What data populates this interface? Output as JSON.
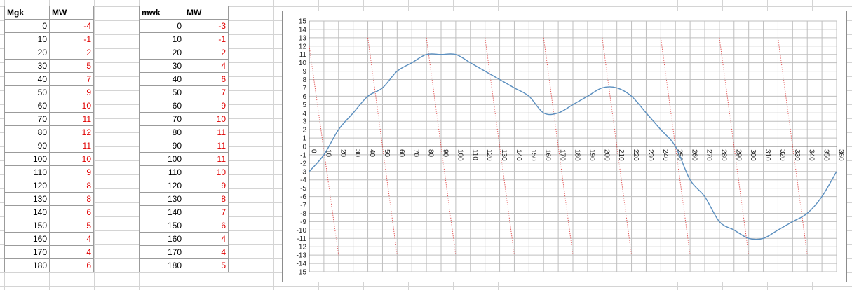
{
  "table_left": {
    "headers": [
      "Mgk",
      "MW"
    ],
    "rows": [
      [
        "0",
        "-4"
      ],
      [
        "10",
        "-1"
      ],
      [
        "20",
        "2"
      ],
      [
        "30",
        "5"
      ],
      [
        "40",
        "7"
      ],
      [
        "50",
        "9"
      ],
      [
        "60",
        "10"
      ],
      [
        "70",
        "11"
      ],
      [
        "80",
        "12"
      ],
      [
        "90",
        "11"
      ],
      [
        "100",
        "10"
      ],
      [
        "110",
        "9"
      ],
      [
        "120",
        "8"
      ],
      [
        "130",
        "8"
      ],
      [
        "140",
        "6"
      ],
      [
        "150",
        "5"
      ],
      [
        "160",
        "4"
      ],
      [
        "170",
        "4"
      ],
      [
        "180",
        "6"
      ]
    ]
  },
  "table_right": {
    "headers": [
      "mwk",
      "MW"
    ],
    "rows": [
      [
        "0",
        "-3"
      ],
      [
        "10",
        "-1"
      ],
      [
        "20",
        "2"
      ],
      [
        "30",
        "4"
      ],
      [
        "40",
        "6"
      ],
      [
        "50",
        "7"
      ],
      [
        "60",
        "9"
      ],
      [
        "70",
        "10"
      ],
      [
        "80",
        "11"
      ],
      [
        "90",
        "11"
      ],
      [
        "100",
        "11"
      ],
      [
        "110",
        "10"
      ],
      [
        "120",
        "9"
      ],
      [
        "130",
        "8"
      ],
      [
        "140",
        "7"
      ],
      [
        "150",
        "6"
      ],
      [
        "160",
        "4"
      ],
      [
        "170",
        "4"
      ],
      [
        "180",
        "5"
      ]
    ]
  },
  "colors": {
    "curve": "#5b8fbf",
    "sawtooth": "#e05050",
    "values_text": "#e00000"
  },
  "chart_data": {
    "type": "line",
    "xlim": [
      0,
      360
    ],
    "ylim": [
      -15,
      15
    ],
    "x_ticks": [
      0,
      10,
      20,
      30,
      40,
      50,
      60,
      70,
      80,
      90,
      100,
      110,
      120,
      130,
      140,
      150,
      160,
      170,
      180,
      190,
      200,
      210,
      220,
      230,
      240,
      250,
      260,
      270,
      280,
      290,
      300,
      310,
      320,
      330,
      340,
      350,
      360
    ],
    "y_ticks": [
      15,
      14,
      13,
      12,
      11,
      10,
      9,
      8,
      7,
      6,
      5,
      4,
      3,
      2,
      1,
      0,
      -1,
      -2,
      -3,
      -4,
      -5,
      -6,
      -7,
      -8,
      -9,
      -10,
      -11,
      -12,
      -13,
      -14,
      -15
    ],
    "grid": true,
    "series": [
      {
        "style": "solid",
        "x": [
          0,
          10,
          20,
          30,
          40,
          50,
          60,
          70,
          80,
          90,
          100,
          110,
          120,
          130,
          140,
          150,
          160,
          170,
          180,
          190,
          200,
          210,
          220,
          230,
          240,
          250,
          260,
          270,
          280,
          290,
          300,
          310,
          320,
          330,
          340,
          350,
          360
        ],
        "y": [
          -3,
          -1,
          2,
          4,
          6,
          7,
          9,
          10,
          11,
          11,
          11,
          10,
          9,
          8,
          7,
          6,
          4,
          4,
          5,
          6,
          7,
          7,
          6,
          4,
          2,
          0,
          -4,
          -6,
          -9,
          -10,
          -11,
          -11,
          -10,
          -9,
          -8,
          -6,
          -3
        ]
      },
      {
        "style": "dotted",
        "segments": [
          [
            [
              0,
              12
            ],
            [
              20,
              -13
            ]
          ],
          [
            [
              40,
              13
            ],
            [
              60,
              -13
            ]
          ],
          [
            [
              80,
              13
            ],
            [
              100,
              -13
            ]
          ],
          [
            [
              120,
              13
            ],
            [
              140,
              -13
            ]
          ],
          [
            [
              160,
              13
            ],
            [
              180,
              -13
            ]
          ],
          [
            [
              200,
              13
            ],
            [
              220,
              -13
            ]
          ],
          [
            [
              240,
              13
            ],
            [
              260,
              -13
            ]
          ],
          [
            [
              280,
              13
            ],
            [
              300,
              -13
            ]
          ],
          [
            [
              320,
              13
            ],
            [
              340,
              -13
            ]
          ]
        ]
      }
    ]
  }
}
